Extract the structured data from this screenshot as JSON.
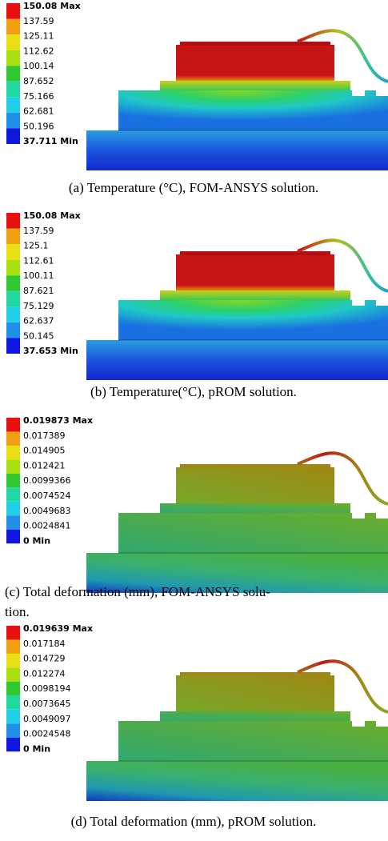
{
  "panels": [
    {
      "legend": [
        "150.08 Max",
        "137.59",
        "125.11",
        "112.62",
        "100.14",
        "87.652",
        "75.166",
        "62.681",
        "50.196",
        "37.711 Min"
      ],
      "caption": [
        "(a) Temperature (°C), FOM-ANSYS solution."
      ]
    },
    {
      "legend": [
        "150.08 Max",
        "137.59",
        "125.1",
        "112.61",
        "100.11",
        "87.621",
        "75.129",
        "62.637",
        "50.145",
        "37.653 Min"
      ],
      "caption": [
        "(b) Temperature(°C), pROM solution."
      ]
    },
    {
      "legend": [
        "0.019873 Max",
        "0.017389",
        "0.014905",
        "0.012421",
        "0.0099366",
        "0.0074524",
        "0.0049683",
        "0.0024841",
        "0 Min"
      ],
      "caption": [
        "(c) Total deformation (mm), FOM-ANSYS solu-",
        "tion."
      ]
    },
    {
      "legend": [
        "0.019639 Max",
        "0.017184",
        "0.014729",
        "0.012274",
        "0.0098194",
        "0.0073645",
        "0.0049097",
        "0.0024548",
        "0 Min"
      ],
      "caption": [
        "(d) Total deformation (mm), pROM solution."
      ]
    }
  ]
}
